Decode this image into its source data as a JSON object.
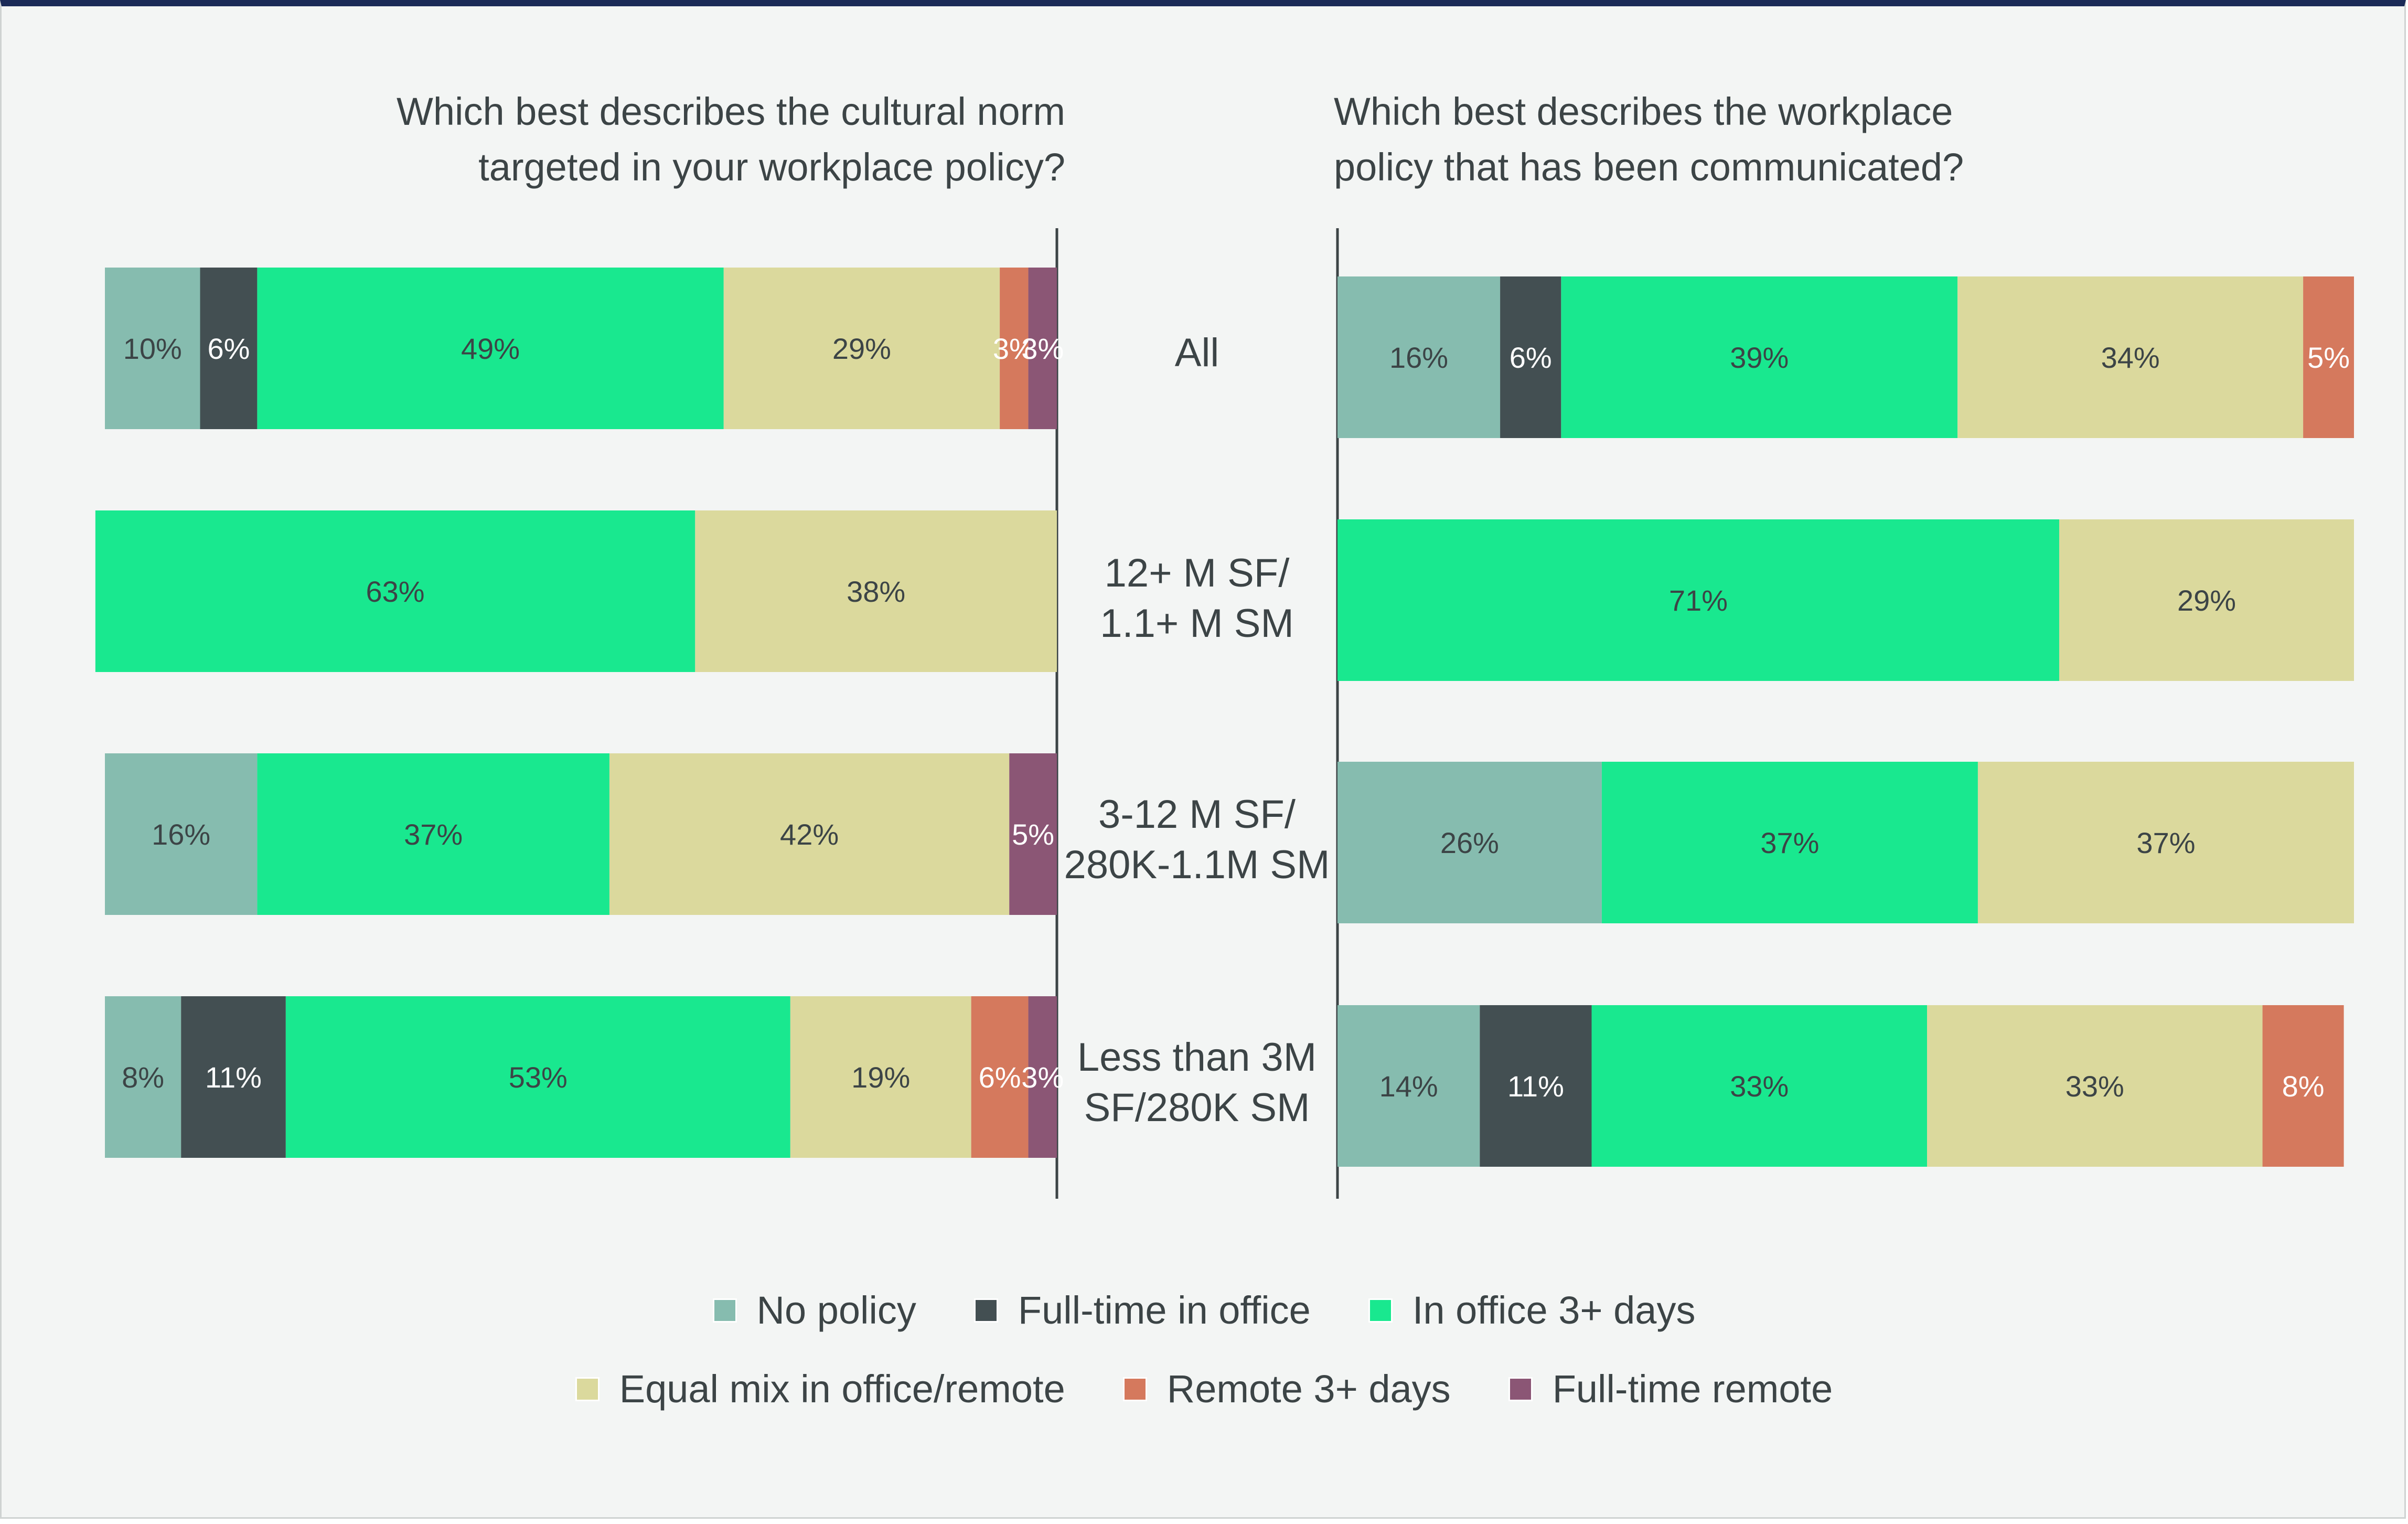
{
  "chart_data": {
    "type": "bar",
    "orientation": "horizontal",
    "stacked": true,
    "categories": [
      "All",
      "12+ M SF/\n1.1+ M SM",
      "3-12 M SF/\n280K-1.1M SM",
      "Less than 3M\nSF/280K SM"
    ],
    "legend_order": [
      [
        "No policy",
        "Full-time in office",
        "In office 3+ days"
      ],
      [
        "Equal mix in office/remote",
        "Remote 3+ days",
        "Full-time remote"
      ]
    ],
    "colors": {
      "No policy": "#86bcaf",
      "Full-time in office": "#434f52",
      "In office 3+ days": "#19e88f",
      "Equal mix in office/remote": "#dbd99d",
      "Remote 3+ days": "#d5795d",
      "Full-time remote": "#8b5675"
    },
    "panels": [
      {
        "title": "Which best describes the cultural norm\ntargeted in your workplace policy?",
        "direction": "right-aligned",
        "series": [
          {
            "name": "No policy",
            "values": [
              10,
              0,
              16,
              8
            ]
          },
          {
            "name": "Full-time in office",
            "values": [
              6,
              0,
              0,
              11
            ]
          },
          {
            "name": "In office 3+ days",
            "values": [
              49,
              63,
              37,
              53
            ]
          },
          {
            "name": "Equal mix in office/remote",
            "values": [
              29,
              38,
              42,
              19
            ]
          },
          {
            "name": "Remote 3+ days",
            "values": [
              3,
              0,
              0,
              6
            ]
          },
          {
            "name": "Full-time remote",
            "values": [
              3,
              0,
              5,
              3
            ]
          }
        ],
        "labels": [
          [
            "10%",
            "6%",
            "49%",
            "29%",
            "3%",
            "3%"
          ],
          [
            "",
            "",
            "63%",
            "38%",
            "",
            ""
          ],
          [
            "16%",
            "",
            "37%",
            "42%",
            "",
            "5%"
          ],
          [
            "8%",
            "11%",
            "53%",
            "19%",
            "6%",
            "3%"
          ]
        ]
      },
      {
        "title": "Which best describes the workplace\npolicy that has been communicated?",
        "direction": "left-aligned",
        "series": [
          {
            "name": "No policy",
            "values": [
              16,
              0,
              26,
              14
            ]
          },
          {
            "name": "Full-time in office",
            "values": [
              6,
              0,
              0,
              11
            ]
          },
          {
            "name": "In office 3+ days",
            "values": [
              39,
              71,
              37,
              33
            ]
          },
          {
            "name": "Equal mix in office/remote",
            "values": [
              34,
              29,
              37,
              33
            ]
          },
          {
            "name": "Remote 3+ days",
            "values": [
              5,
              0,
              0,
              8
            ]
          },
          {
            "name": "Full-time remote",
            "values": [
              0,
              0,
              0,
              0
            ]
          }
        ],
        "labels": [
          [
            "16%",
            "6%",
            "39%",
            "34%",
            "5%",
            ""
          ],
          [
            "",
            "",
            "71%",
            "29%",
            "",
            ""
          ],
          [
            "26%",
            "",
            "37%",
            "37%",
            "",
            ""
          ],
          [
            "14%",
            "11%",
            "33%",
            "33%",
            "8%",
            ""
          ]
        ]
      }
    ]
  }
}
